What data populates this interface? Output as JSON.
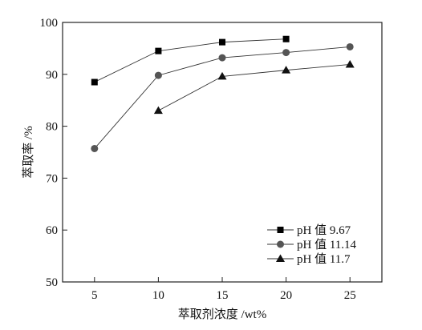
{
  "chart_data": {
    "type": "line",
    "title": "",
    "xlabel": "萃取剂浓度 /wt%",
    "ylabel": "萃取率 /%",
    "xlim": [
      2.5,
      27.5
    ],
    "ylim": [
      50,
      100
    ],
    "xticks": [
      5,
      10,
      15,
      20,
      25
    ],
    "yticks": [
      50,
      60,
      70,
      80,
      90,
      100
    ],
    "grid": false,
    "legend_position": "bottom-right",
    "series": [
      {
        "name": "pH 值 9.67",
        "marker": "square",
        "color": "#000000",
        "x": [
          5,
          10,
          15,
          20
        ],
        "y": [
          88.5,
          94.5,
          96.2,
          96.8
        ]
      },
      {
        "name": "pH 值 11.14",
        "marker": "circle",
        "color": "#555555",
        "x": [
          5,
          10,
          15,
          20,
          25
        ],
        "y": [
          75.7,
          89.8,
          93.2,
          94.2,
          95.3
        ]
      },
      {
        "name": "pH 值 11.7",
        "marker": "triangle",
        "color": "#111111",
        "x": [
          10,
          15,
          20,
          25
        ],
        "y": [
          83.0,
          89.6,
          90.8,
          91.9
        ]
      }
    ]
  }
}
